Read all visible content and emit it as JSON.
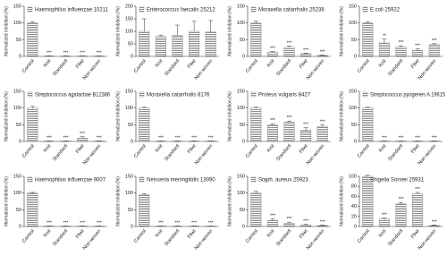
{
  "chart_data": [
    {
      "type": "bar",
      "ylabel": "Normalized inhibition (%)",
      "categories": [
        "Control",
        "Knit",
        "Standard",
        "Fliwt",
        "Non-woven"
      ],
      "series": [
        {
          "name": "Haemophilus influenzae 10211",
          "color": "#8c8c8c",
          "values": [
            100,
            1,
            1,
            1,
            1
          ],
          "errors": [
            3,
            0.5,
            0.5,
            0.5,
            0.5
          ]
        }
      ],
      "annotations": [
        null,
        "***",
        "***",
        "***",
        "***"
      ],
      "ylim": [
        0,
        150
      ],
      "yticks": [
        0,
        50,
        100,
        150
      ]
    },
    {
      "type": "bar",
      "ylabel": "Normalized inhibition (%)",
      "categories": [
        "Control",
        "Knit",
        "Standard",
        "Fliwt",
        "Non-woven"
      ],
      "series": [
        {
          "name": "Enterococcus faecalis 25212",
          "color": "#8c8c8c",
          "values": [
            100,
            80,
            85,
            100,
            98
          ],
          "errors": [
            50,
            5,
            40,
            40,
            45
          ]
        }
      ],
      "annotations": [
        null,
        null,
        null,
        null,
        null
      ],
      "ylim": [
        0,
        200
      ],
      "yticks": [
        0,
        50,
        100,
        150,
        200
      ]
    },
    {
      "type": "bar",
      "ylabel": "Normalized inhibition (%)",
      "categories": [
        "Control",
        "Knit",
        "Standard",
        "Fliwt",
        "Non-woven"
      ],
      "series": [
        {
          "name": "Moraxella catarrhalis 25238",
          "color": "#8c8c8c",
          "values": [
            100,
            12,
            27,
            8,
            3
          ],
          "errors": [
            5,
            3,
            4,
            2,
            1
          ]
        }
      ],
      "annotations": [
        null,
        "***",
        "***",
        "***",
        "***"
      ],
      "ylim": [
        0,
        150
      ],
      "yticks": [
        0,
        50,
        100,
        150
      ]
    },
    {
      "type": "bar",
      "ylabel": "Normalized inhibition (%)",
      "categories": [
        "Control",
        "Knit",
        "Standard",
        "Fliwt",
        "Non-woven"
      ],
      "series": [
        {
          "name": "E.coli 25922",
          "color": "#8c8c8c",
          "values": [
            100,
            40,
            28,
            18,
            35
          ],
          "errors": [
            3,
            12,
            4,
            5,
            3
          ]
        }
      ],
      "annotations": [
        null,
        "**",
        "***",
        "***",
        "***"
      ],
      "ylim": [
        0,
        150
      ],
      "yticks": [
        0,
        50,
        100,
        150
      ]
    },
    {
      "type": "bar",
      "ylabel": "Normalized inhibition (%)",
      "categories": [
        "Control",
        "Knit",
        "Standard",
        "Fliwt",
        "Non-woven"
      ],
      "series": [
        {
          "name": "Streptococcus agalactiae B12386",
          "color": "#8c8c8c",
          "values": [
            100,
            1,
            1,
            10,
            1
          ],
          "errors": [
            5,
            0.5,
            0.5,
            4,
            0.5
          ]
        }
      ],
      "annotations": [
        null,
        "***",
        "***",
        "***",
        "***"
      ],
      "ylim": [
        0,
        150
      ],
      "yticks": [
        0,
        50,
        100,
        150
      ]
    },
    {
      "type": "bar",
      "ylabel": "Normalized inhibition (%)",
      "categories": [
        "Control",
        "Knit",
        "Standard",
        "Fliwt",
        "Non-woven"
      ],
      "series": [
        {
          "name": "Moraxella catarrhalis 8176",
          "color": "#8c8c8c",
          "values": [
            100,
            1,
            1,
            1,
            1
          ],
          "errors": [
            2,
            0.5,
            0.5,
            0.5,
            0.5
          ]
        }
      ],
      "annotations": [
        null,
        "***",
        "***",
        "***",
        "***"
      ],
      "ylim": [
        0,
        150
      ],
      "yticks": [
        0,
        50,
        100,
        150
      ]
    },
    {
      "type": "bar",
      "ylabel": "Normalized inhibition (%)",
      "categories": [
        "Control",
        "Knit",
        "Standard",
        "Fliwt",
        "Non-woven"
      ],
      "series": [
        {
          "name": "Proteus vulgaris 8427",
          "color": "#8c8c8c",
          "values": [
            100,
            50,
            58,
            33,
            45
          ],
          "errors": [
            3,
            3,
            3,
            8,
            4
          ]
        }
      ],
      "annotations": [
        null,
        "***",
        "***",
        "***",
        "***"
      ],
      "ylim": [
        0,
        150
      ],
      "yticks": [
        0,
        50,
        100,
        150
      ]
    },
    {
      "type": "bar",
      "ylabel": "Normalized inhibition (%)",
      "categories": [
        "Control",
        "Knit",
        "Standard",
        "Fliwt",
        "Non-woven"
      ],
      "series": [
        {
          "name": "Streptococcus pyogenes A 19615",
          "color": "#8c8c8c",
          "values": [
            100,
            1,
            1,
            1,
            1
          ],
          "errors": [
            2,
            0.5,
            0.5,
            0.5,
            0.5
          ]
        }
      ],
      "annotations": [
        null,
        "***",
        "***",
        "***",
        "***"
      ],
      "ylim": [
        0,
        150
      ],
      "yticks": [
        0,
        50,
        100,
        150
      ]
    },
    {
      "type": "bar",
      "ylabel": "Normalized inhibition (%)",
      "categories": [
        "Control",
        "Knit",
        "Standard",
        "Fliwt",
        "Non-woven"
      ],
      "series": [
        {
          "name": "Haemophilus influenzae 9007",
          "color": "#8c8c8c",
          "values": [
            100,
            1,
            1,
            1,
            1
          ],
          "errors": [
            2,
            0.5,
            0.5,
            0.5,
            0.5
          ]
        }
      ],
      "annotations": [
        null,
        "***",
        "***",
        "***",
        "***"
      ],
      "ylim": [
        0,
        150
      ],
      "yticks": [
        0,
        50,
        100,
        150
      ]
    },
    {
      "type": "bar",
      "ylabel": "Normalized inhibition (%)",
      "categories": [
        "Control",
        "Knit",
        "Standard",
        "Fliwt",
        "Non-woven"
      ],
      "series": [
        {
          "name": "Neisseria meningitidis 13090",
          "color": "#8c8c8c",
          "values": [
            95,
            1,
            1,
            1,
            1
          ],
          "errors": [
            3,
            0.5,
            0.5,
            0.5,
            0.5
          ]
        }
      ],
      "annotations": [
        null,
        "***",
        "***",
        "***",
        "***"
      ],
      "ylim": [
        0,
        150
      ],
      "yticks": [
        0,
        50,
        100,
        150
      ]
    },
    {
      "type": "bar",
      "ylabel": "Normalized inhibition (%)",
      "categories": [
        "Control",
        "Knit",
        "Standard",
        "Fliwt",
        "Non-woven"
      ],
      "series": [
        {
          "name": "Staph. aureus 25923",
          "color": "#8c8c8c",
          "values": [
            100,
            18,
            10,
            5,
            3
          ],
          "errors": [
            5,
            5,
            3,
            2,
            1
          ]
        }
      ],
      "annotations": [
        null,
        "***",
        "***",
        "***",
        "***"
      ],
      "ylim": [
        0,
        150
      ],
      "yticks": [
        0,
        50,
        100,
        150
      ]
    },
    {
      "type": "bar",
      "ylabel": "Normalized inhibition (%)",
      "categories": [
        "Control",
        "Knit",
        "Standard",
        "Fliwt",
        "Non-woven"
      ],
      "series": [
        {
          "name": "Shigella Sonnei 25931",
          "color": "#8c8c8c",
          "values": [
            100,
            15,
            45,
            65,
            2
          ],
          "errors": [
            2,
            2,
            3,
            3,
            1
          ]
        }
      ],
      "annotations": [
        null,
        "***",
        "***",
        "***",
        "***"
      ],
      "ylim": [
        0,
        100
      ],
      "yticks": [
        0,
        20,
        40,
        60,
        80,
        100
      ]
    }
  ]
}
